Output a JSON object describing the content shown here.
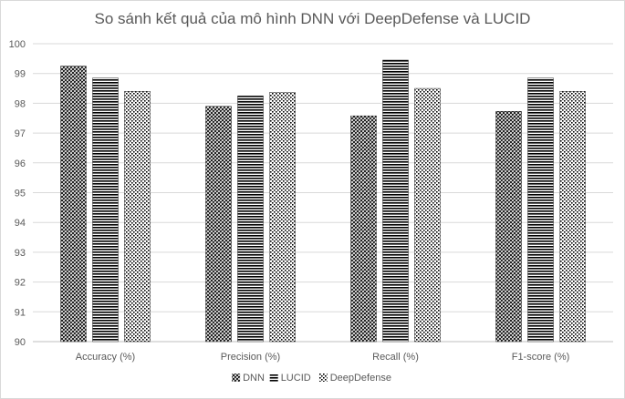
{
  "chart_data": {
    "type": "bar",
    "title": "So sánh kết quả của mô hình DNN với DeepDefense và LUCID",
    "xlabel": "",
    "ylabel": "",
    "categories": [
      "Accuracy (%)",
      "Precision (%)",
      "Recall (%)",
      "F1-score (%)"
    ],
    "series": [
      {
        "name": "DNN",
        "values": [
          99.25,
          97.9,
          97.58,
          97.73
        ],
        "pattern": "diagonal-cross"
      },
      {
        "name": "LUCID",
        "values": [
          98.85,
          98.25,
          99.45,
          98.85
        ],
        "pattern": "horizontal"
      },
      {
        "name": "DeepDefense",
        "values": [
          98.4,
          98.37,
          98.5,
          98.4
        ],
        "pattern": "dots"
      }
    ],
    "ylim": [
      90,
      100
    ],
    "yticks": [
      "90",
      "91",
      "92",
      "93",
      "94",
      "95",
      "96",
      "97",
      "98",
      "99",
      "100"
    ],
    "grid": true,
    "legend_position": "bottom"
  }
}
